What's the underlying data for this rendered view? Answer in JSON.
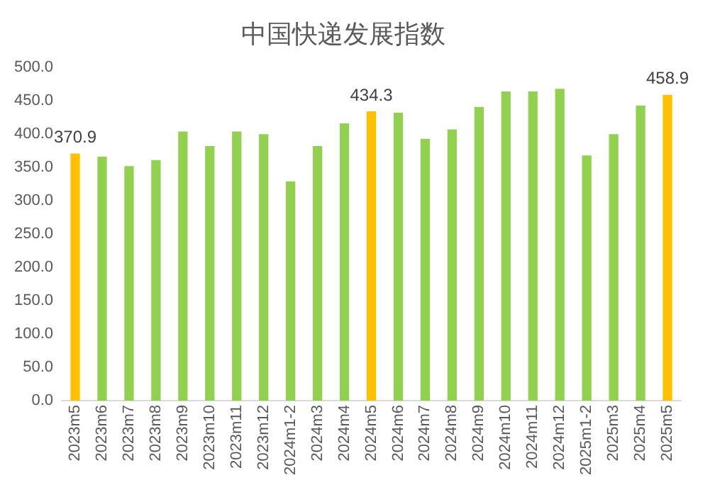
{
  "chart_data": {
    "type": "bar",
    "title": "中国快递发展指数",
    "categories": [
      "2023m5",
      "2023m6",
      "2023m7",
      "2023m8",
      "2023m9",
      "2023m10",
      "2023m11",
      "2023m12",
      "2024m1-2",
      "2024m3",
      "2024m4",
      "2024m5",
      "2024m6",
      "2024m7",
      "2024m8",
      "2024m9",
      "2024m10",
      "2024m11",
      "2024m12",
      "2025m1-2",
      "2025m3",
      "2025m4",
      "2025m5"
    ],
    "values": [
      370.9,
      366,
      352,
      361,
      404,
      382,
      404,
      400,
      329,
      382,
      416,
      434.3,
      432,
      393,
      407,
      441,
      464,
      464,
      468,
      368,
      400,
      443,
      458.9
    ],
    "colors": [
      "#ffc000",
      "#92d050",
      "#92d050",
      "#92d050",
      "#92d050",
      "#92d050",
      "#92d050",
      "#92d050",
      "#92d050",
      "#92d050",
      "#92d050",
      "#ffc000",
      "#92d050",
      "#92d050",
      "#92d050",
      "#92d050",
      "#92d050",
      "#92d050",
      "#92d050",
      "#92d050",
      "#92d050",
      "#92d050",
      "#ffc000"
    ],
    "value_labels": [
      "370.9",
      null,
      null,
      null,
      null,
      null,
      null,
      null,
      null,
      null,
      null,
      "434.3",
      null,
      null,
      null,
      null,
      null,
      null,
      null,
      null,
      null,
      null,
      "458.9"
    ],
    "ylim": [
      0,
      500
    ],
    "yticks": [
      {
        "value": 0,
        "label": "0.0"
      },
      {
        "value": 50,
        "label": "50.0"
      },
      {
        "value": 100,
        "label": "100.0"
      },
      {
        "value": 150,
        "label": "150.0"
      },
      {
        "value": 200,
        "label": "200.0"
      },
      {
        "value": 250,
        "label": "250.0"
      },
      {
        "value": 300,
        "label": "300.0"
      },
      {
        "value": 350,
        "label": "350.0"
      },
      {
        "value": 400,
        "label": "400.0"
      },
      {
        "value": 450,
        "label": "450.0"
      },
      {
        "value": 500,
        "label": "500.0"
      }
    ],
    "grid": false,
    "legend": false
  }
}
